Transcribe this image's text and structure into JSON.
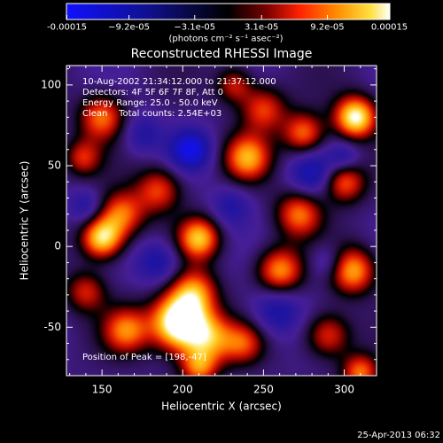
{
  "chart_data": {
    "type": "heatmap",
    "title": "Reconstructed RHESSI Image",
    "xlabel": "Heliocentric X (arcsec)",
    "ylabel": "Heliocentric Y (arcsec)",
    "xlim": [
      128,
      320
    ],
    "ylim": [
      -80,
      112
    ],
    "xticks": [
      150,
      200,
      250,
      300
    ],
    "yticks": [
      -50,
      0,
      50,
      100
    ],
    "xtick_labels": [
      "150",
      "200",
      "250",
      "300"
    ],
    "ytick_labels": [
      "-50",
      "0",
      "50",
      "100"
    ],
    "colorbar": {
      "min": -0.00015,
      "max": 0.00015,
      "ticks": [
        -0.00015,
        -9.2e-05,
        -3.1e-05,
        3.1e-05,
        9.2e-05,
        0.00015
      ],
      "tick_labels": [
        "-0.00015",
        "−9.2e-05",
        "−3.1e-05",
        "3.1e-05",
        "9.2e-05",
        "0.00015"
      ],
      "units": "(photons cm⁻² s⁻¹ asec⁻²)"
    },
    "annotations": [
      "10-Aug-2002 21:34:12.000 to 21:37:12.000",
      "Detectors: 4F 5F 6F 7F 8F, Att 0",
      "Energy Range: 25.0 - 50.0 keV",
      "Clean    Total counts: 2.54E+03"
    ],
    "peak_label": "Position of Peak = [198,-47]",
    "peak": {
      "x": 198,
      "y": -47
    },
    "sources": [
      {
        "x": 198,
        "y": -47,
        "amp": 1.5,
        "sigma": 12
      },
      {
        "x": 207,
        "y": -28,
        "amp": 0.75,
        "sigma": 10
      },
      {
        "x": 217,
        "y": -57,
        "amp": 0.75,
        "sigma": 11
      },
      {
        "x": 165,
        "y": -52,
        "amp": 0.75,
        "sigma": 10
      },
      {
        "x": 150,
        "y": 5,
        "amp": 1.1,
        "sigma": 9
      },
      {
        "x": 162,
        "y": 20,
        "amp": 0.75,
        "sigma": 10
      },
      {
        "x": 210,
        "y": 5,
        "amp": 0.95,
        "sigma": 9
      },
      {
        "x": 185,
        "y": 35,
        "amp": 0.65,
        "sigma": 10
      },
      {
        "x": 150,
        "y": 80,
        "amp": 0.75,
        "sigma": 10
      },
      {
        "x": 138,
        "y": 55,
        "amp": 0.55,
        "sigma": 8
      },
      {
        "x": 240,
        "y": 55,
        "amp": 0.85,
        "sigma": 10
      },
      {
        "x": 250,
        "y": 85,
        "amp": 0.65,
        "sigma": 10
      },
      {
        "x": 275,
        "y": 70,
        "amp": 0.75,
        "sigma": 9
      },
      {
        "x": 307,
        "y": 80,
        "amp": 1.2,
        "sigma": 9
      },
      {
        "x": 300,
        "y": 40,
        "amp": 0.75,
        "sigma": 9
      },
      {
        "x": 272,
        "y": 20,
        "amp": 0.75,
        "sigma": 10
      },
      {
        "x": 260,
        "y": -15,
        "amp": 0.85,
        "sigma": 10
      },
      {
        "x": 305,
        "y": -15,
        "amp": 0.9,
        "sigma": 10
      },
      {
        "x": 290,
        "y": -55,
        "amp": 0.65,
        "sigma": 10
      },
      {
        "x": 140,
        "y": -28,
        "amp": 0.55,
        "sigma": 9
      },
      {
        "x": 238,
        "y": -60,
        "amp": 0.55,
        "sigma": 9
      },
      {
        "x": 210,
        "y": -75,
        "amp": 0.7,
        "sigma": 8
      },
      {
        "x": 310,
        "y": -78,
        "amp": 0.75,
        "sigma": 8
      },
      {
        "x": 232,
        "y": 100,
        "amp": 0.55,
        "sigma": 8
      },
      {
        "x": 205,
        "y": 60,
        "amp": -0.65,
        "sigma": 9
      },
      {
        "x": 280,
        "y": 45,
        "amp": -0.45,
        "sigma": 10
      },
      {
        "x": 258,
        "y": -40,
        "amp": -0.45,
        "sigma": 11
      },
      {
        "x": 185,
        "y": -10,
        "amp": -0.45,
        "sigma": 10
      },
      {
        "x": 140,
        "y": 25,
        "amp": -0.35,
        "sigma": 8
      },
      {
        "x": 230,
        "y": 25,
        "amp": -0.35,
        "sigma": 9
      },
      {
        "x": 290,
        "y": -10,
        "amp": -0.35,
        "sigma": 8
      },
      {
        "x": 300,
        "y": 55,
        "amp": -0.35,
        "sigma": 7
      },
      {
        "x": 175,
        "y": 70,
        "amp": -0.35,
        "sigma": 9
      }
    ]
  },
  "footer": {
    "timestamp": "25-Apr-2013 06:32"
  },
  "colors": {
    "background": "#000000",
    "foreground": "#ffffff",
    "colormap_negative": "#1010ff",
    "colormap_zero": "#000000",
    "colormap_positive_mid": "#ff3000",
    "colormap_positive_max": "#ffffff"
  }
}
